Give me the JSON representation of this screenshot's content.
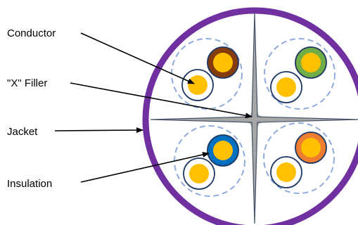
{
  "labels": {
    "conductor": "Conductor",
    "x_filler": "\"X\" Filler",
    "jacket": "Jacket",
    "insulation": "Insulation"
  },
  "colors": {
    "jacket": "#7030a0",
    "filler": "#a6a6a6",
    "filler_outline": "#44546a",
    "conductor": "#ffc000",
    "pair_boundary": "#8faadc",
    "insulation_white": "#ffffff",
    "insulation_white_outline": "#1f3864",
    "insulation_brown": "#843c0c",
    "insulation_green": "#70ad47",
    "insulation_blue": "#0070c0",
    "insulation_orange": "#ed7d31",
    "pointer": "#000000"
  }
}
